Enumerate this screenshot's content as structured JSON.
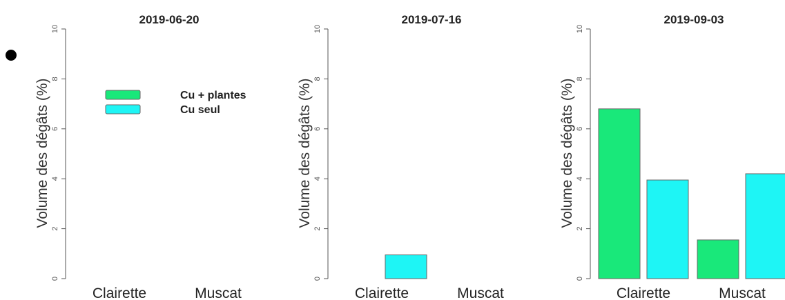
{
  "chart_data": [
    {
      "type": "bar",
      "title": "2019-06-20",
      "ylabel": "Volume des dégâts (%)",
      "xlabel": "",
      "ylim": [
        0,
        10
      ],
      "yticks": [
        "0",
        "2",
        "4",
        "6",
        "8",
        "10"
      ],
      "categories": [
        "Clairette",
        "Muscat"
      ],
      "series": [
        {
          "name": "Cu + plantes",
          "color": "#19e87a",
          "values": [
            0,
            0
          ]
        },
        {
          "name": "Cu seul",
          "color": "#1ef5f5",
          "values": [
            0,
            0
          ]
        }
      ],
      "legend": "upper-middle"
    },
    {
      "type": "bar",
      "title": "2019-07-16",
      "ylabel": "Volume des dégâts (%)",
      "xlabel": "",
      "ylim": [
        0,
        10
      ],
      "yticks": [
        "0",
        "2",
        "4",
        "6",
        "8",
        "10"
      ],
      "categories": [
        "Clairette",
        "Muscat"
      ],
      "series": [
        {
          "name": "Cu + plantes",
          "color": "#19e87a",
          "values": [
            0,
            0
          ]
        },
        {
          "name": "Cu seul",
          "color": "#1ef5f5",
          "values": [
            0.95,
            0
          ]
        }
      ]
    },
    {
      "type": "bar",
      "title": "2019-09-03",
      "ylabel": "Volume des dégâts (%)",
      "xlabel": "",
      "ylim": [
        0,
        10
      ],
      "yticks": [
        "0",
        "2",
        "4",
        "6",
        "8",
        "10"
      ],
      "categories": [
        "Clairette",
        "Muscat"
      ],
      "series": [
        {
          "name": "Cu + plantes",
          "color": "#19e87a",
          "values": [
            6.8,
            1.55
          ]
        },
        {
          "name": "Cu seul",
          "color": "#1ef5f5",
          "values": [
            3.95,
            4.2
          ]
        }
      ]
    }
  ]
}
